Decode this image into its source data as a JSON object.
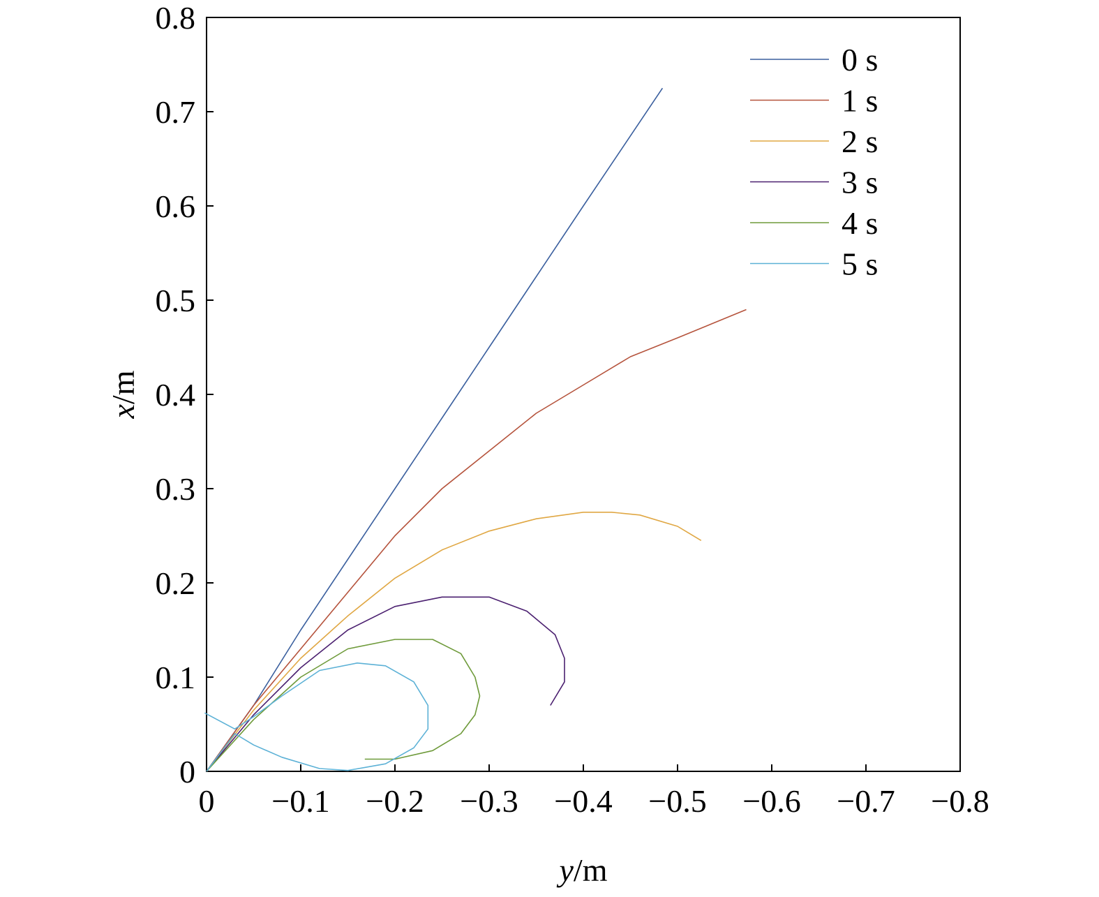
{
  "chart_data": {
    "type": "line",
    "xlabel": {
      "var": "y",
      "unit": "/m"
    },
    "ylabel": {
      "var": "x",
      "unit": "/m"
    },
    "xlim": [
      0,
      -0.8
    ],
    "ylim": [
      0,
      0.8
    ],
    "xticks": [
      0,
      -0.1,
      -0.2,
      -0.3,
      -0.4,
      -0.5,
      -0.6,
      -0.7,
      -0.8
    ],
    "xtick_labels": [
      "0",
      "−0.1",
      "−0.2",
      "−0.3",
      "−0.4",
      "−0.5",
      "−0.6",
      "−0.7",
      "−0.8"
    ],
    "yticks": [
      0,
      0.1,
      0.2,
      0.3,
      0.4,
      0.5,
      0.6,
      0.7,
      0.8
    ],
    "ytick_labels": [
      "0",
      "0.1",
      "0.2",
      "0.3",
      "0.4",
      "0.5",
      "0.6",
      "0.7",
      "0.8"
    ],
    "grid": false,
    "legend_position": "top-right",
    "series": [
      {
        "name": "0 s",
        "color": "#3a5f9e",
        "points": [
          [
            0,
            0
          ],
          [
            -0.05,
            0.07
          ],
          [
            -0.1,
            0.15
          ],
          [
            -0.2,
            0.3
          ],
          [
            -0.3,
            0.45
          ],
          [
            -0.4,
            0.6
          ],
          [
            -0.484,
            0.725
          ]
        ]
      },
      {
        "name": "1 s",
        "color": "#b5533c",
        "points": [
          [
            0,
            0
          ],
          [
            -0.05,
            0.07
          ],
          [
            -0.1,
            0.13
          ],
          [
            -0.15,
            0.19
          ],
          [
            -0.2,
            0.25
          ],
          [
            -0.25,
            0.3
          ],
          [
            -0.3,
            0.34
          ],
          [
            -0.35,
            0.38
          ],
          [
            -0.4,
            0.41
          ],
          [
            -0.45,
            0.44
          ],
          [
            -0.5,
            0.46
          ],
          [
            -0.573,
            0.49
          ]
        ]
      },
      {
        "name": "2 s",
        "color": "#e0a743",
        "points": [
          [
            0,
            0
          ],
          [
            -0.05,
            0.065
          ],
          [
            -0.1,
            0.12
          ],
          [
            -0.15,
            0.165
          ],
          [
            -0.2,
            0.205
          ],
          [
            -0.25,
            0.235
          ],
          [
            -0.3,
            0.255
          ],
          [
            -0.35,
            0.268
          ],
          [
            -0.4,
            0.275
          ],
          [
            -0.43,
            0.275
          ],
          [
            -0.46,
            0.272
          ],
          [
            -0.5,
            0.26
          ],
          [
            -0.525,
            0.245
          ]
        ]
      },
      {
        "name": "3 s",
        "color": "#4b2070",
        "points": [
          [
            0,
            0
          ],
          [
            -0.05,
            0.06
          ],
          [
            -0.1,
            0.11
          ],
          [
            -0.15,
            0.15
          ],
          [
            -0.2,
            0.175
          ],
          [
            -0.25,
            0.185
          ],
          [
            -0.3,
            0.185
          ],
          [
            -0.34,
            0.17
          ],
          [
            -0.37,
            0.145
          ],
          [
            -0.38,
            0.12
          ],
          [
            -0.38,
            0.095
          ],
          [
            -0.365,
            0.07
          ]
        ]
      },
      {
        "name": "4 s",
        "color": "#6e9a3a",
        "points": [
          [
            0,
            0
          ],
          [
            -0.05,
            0.055
          ],
          [
            -0.1,
            0.1
          ],
          [
            -0.15,
            0.13
          ],
          [
            -0.2,
            0.14
          ],
          [
            -0.24,
            0.14
          ],
          [
            -0.27,
            0.125
          ],
          [
            -0.285,
            0.1
          ],
          [
            -0.29,
            0.08
          ],
          [
            -0.285,
            0.06
          ],
          [
            -0.27,
            0.04
          ],
          [
            -0.24,
            0.022
          ],
          [
            -0.2,
            0.013
          ],
          [
            -0.168,
            0.013
          ]
        ]
      },
      {
        "name": "5 s",
        "color": "#5cb1d6",
        "points": [
          [
            0.002,
            0.062
          ],
          [
            -0.03,
            0.045
          ],
          [
            -0.05,
            0.058
          ],
          [
            -0.08,
            0.08
          ],
          [
            -0.12,
            0.107
          ],
          [
            -0.16,
            0.115
          ],
          [
            -0.19,
            0.112
          ],
          [
            -0.22,
            0.095
          ],
          [
            -0.235,
            0.07
          ],
          [
            -0.235,
            0.045
          ],
          [
            -0.22,
            0.025
          ],
          [
            -0.19,
            0.008
          ],
          [
            -0.15,
            0.001
          ],
          [
            -0.12,
            0.003
          ],
          [
            -0.08,
            0.015
          ],
          [
            -0.05,
            0.028
          ],
          [
            -0.03,
            0.04
          ],
          [
            -0.015,
            0.02
          ],
          [
            0,
            0
          ]
        ]
      }
    ]
  }
}
